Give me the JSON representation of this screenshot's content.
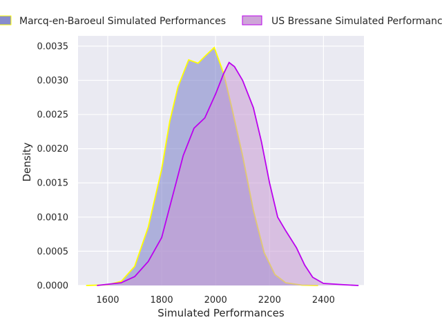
{
  "chart_data": {
    "type": "area",
    "xlabel": "Simulated Performances",
    "ylabel": "Density",
    "xlim": [
      1490,
      2550
    ],
    "ylim": [
      0,
      0.00365
    ],
    "x_ticks": [
      1600,
      1800,
      2000,
      2200,
      2400
    ],
    "x_tick_labels": [
      "1600",
      "1800",
      "2000",
      "2200",
      "2400"
    ],
    "y_ticks": [
      0,
      0.0005,
      0.001,
      0.0015,
      0.002,
      0.0025,
      0.003,
      0.0035
    ],
    "y_tick_labels": [
      "0.0000",
      "0.0005",
      "0.0010",
      "0.0015",
      "0.0020",
      "0.0025",
      "0.0030",
      "0.0035"
    ],
    "grid": true,
    "legend_position": "top",
    "series": [
      {
        "name": "Marcq-en-Baroeul Simulated Performances",
        "fill": "#7a7fc8",
        "line": "#ffff00",
        "points": [
          [
            1520,
            0
          ],
          [
            1600,
            1e-05
          ],
          [
            1650,
            6e-05
          ],
          [
            1700,
            0.00028
          ],
          [
            1750,
            0.00085
          ],
          [
            1800,
            0.0017
          ],
          [
            1830,
            0.0024
          ],
          [
            1860,
            0.0029
          ],
          [
            1900,
            0.0033
          ],
          [
            1935,
            0.00325
          ],
          [
            1960,
            0.00335
          ],
          [
            1995,
            0.00348
          ],
          [
            2030,
            0.0031
          ],
          [
            2060,
            0.0026
          ],
          [
            2100,
            0.0019
          ],
          [
            2140,
            0.0011
          ],
          [
            2180,
            0.00048
          ],
          [
            2220,
            0.00016
          ],
          [
            2260,
            4e-05
          ],
          [
            2320,
            5e-06
          ],
          [
            2380,
            0
          ]
        ]
      },
      {
        "name": "US Bressane Simulated Performances",
        "fill": "#c99bd4",
        "line": "#bb00ee",
        "points": [
          [
            1560,
            0
          ],
          [
            1650,
            4e-05
          ],
          [
            1700,
            0.00013
          ],
          [
            1750,
            0.00035
          ],
          [
            1800,
            0.0007
          ],
          [
            1840,
            0.0013
          ],
          [
            1880,
            0.0019
          ],
          [
            1920,
            0.0023
          ],
          [
            1960,
            0.00245
          ],
          [
            2000,
            0.0028
          ],
          [
            2030,
            0.0031
          ],
          [
            2050,
            0.00326
          ],
          [
            2070,
            0.0032
          ],
          [
            2100,
            0.003
          ],
          [
            2140,
            0.0026
          ],
          [
            2170,
            0.0021
          ],
          [
            2200,
            0.0015
          ],
          [
            2230,
            0.001
          ],
          [
            2260,
            0.0008
          ],
          [
            2300,
            0.00055
          ],
          [
            2330,
            0.0003
          ],
          [
            2360,
            0.00012
          ],
          [
            2400,
            3e-05
          ],
          [
            2440,
            2e-05
          ],
          [
            2480,
            1e-05
          ],
          [
            2530,
            0
          ]
        ]
      }
    ]
  }
}
